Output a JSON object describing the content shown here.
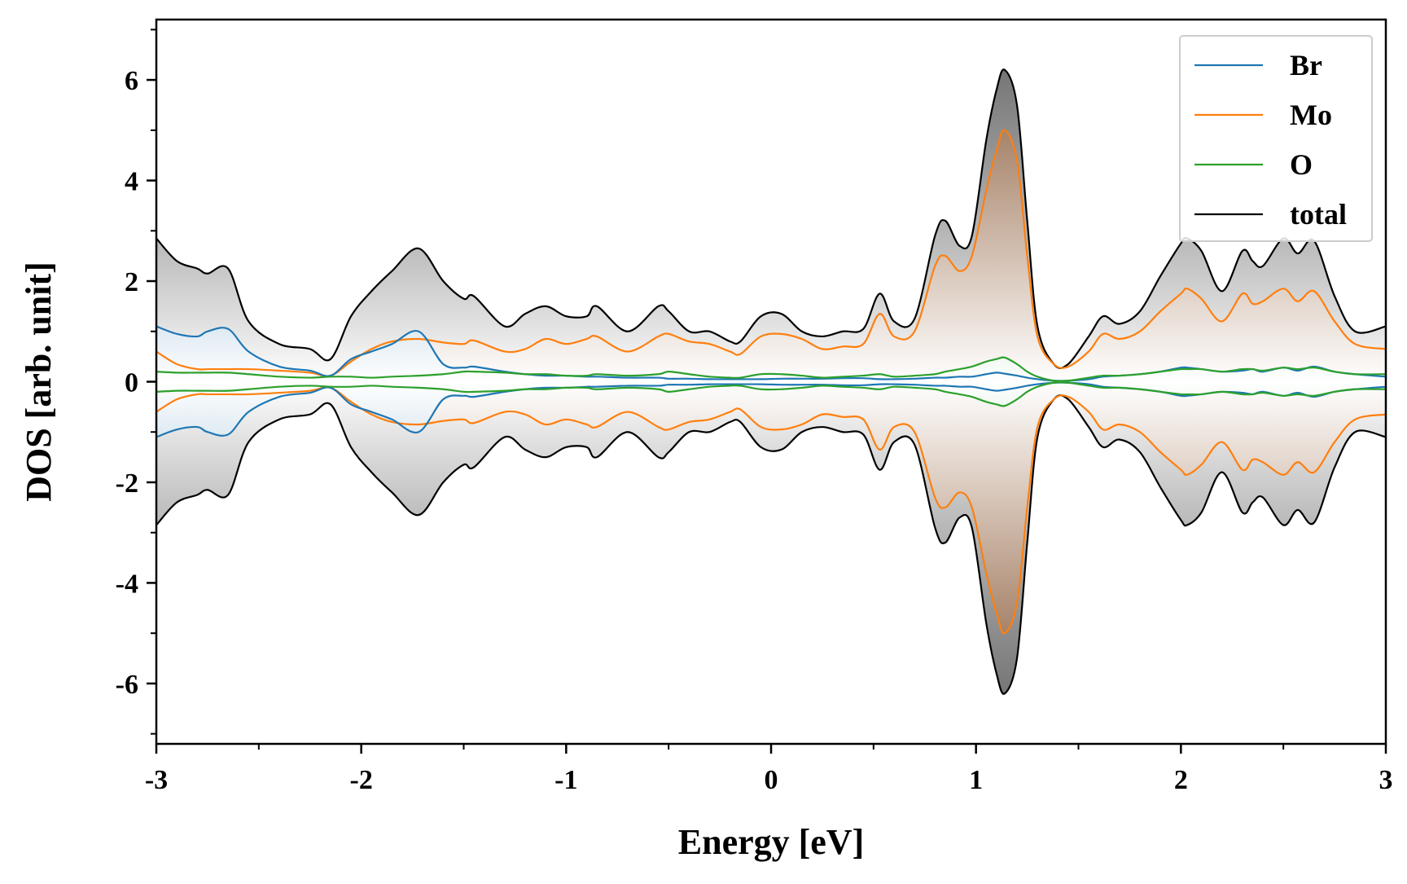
{
  "chart_data": {
    "type": "line",
    "title": "",
    "xlabel": "Energy [eV]",
    "ylabel": "DOS [arb. unit]",
    "xlim": [
      -3,
      3
    ],
    "ylim": [
      -7.2,
      7.2
    ],
    "x_ticks": [
      -3,
      -2,
      -1,
      0,
      1,
      2,
      3
    ],
    "x_tick_labels": [
      "-3",
      "-2",
      "-1",
      "0",
      "1",
      "2",
      "3"
    ],
    "y_ticks": [
      -6,
      -4,
      -2,
      0,
      2,
      4,
      6
    ],
    "y_tick_labels": [
      "-6",
      "-4",
      "-2",
      "0",
      "2",
      "4",
      "6"
    ],
    "legend_position": "top-right",
    "mirrored_about_zero": true,
    "x": [
      -3.0,
      -2.9,
      -2.8,
      -2.75,
      -2.65,
      -2.55,
      -2.4,
      -2.25,
      -2.15,
      -2.05,
      -1.95,
      -1.85,
      -1.72,
      -1.6,
      -1.5,
      -1.45,
      -1.3,
      -1.2,
      -1.1,
      -1.0,
      -0.9,
      -0.85,
      -0.7,
      -0.55,
      -0.5,
      -0.4,
      -0.3,
      -0.2,
      -0.15,
      -0.05,
      0.05,
      0.15,
      0.25,
      0.35,
      0.45,
      0.53,
      0.6,
      0.7,
      0.8,
      0.85,
      0.92,
      0.98,
      1.05,
      1.1,
      1.14,
      1.2,
      1.25,
      1.3,
      1.38,
      1.45,
      1.55,
      1.62,
      1.7,
      1.8,
      1.9,
      2.0,
      2.03,
      2.1,
      2.2,
      2.3,
      2.35,
      2.4,
      2.5,
      2.57,
      2.65,
      2.75,
      2.85,
      3.0
    ],
    "series": [
      {
        "name": "Br",
        "color": "#1f77b4",
        "values": [
          1.1,
          0.95,
          0.9,
          1.0,
          1.05,
          0.6,
          0.3,
          0.22,
          0.12,
          0.45,
          0.6,
          0.75,
          1.0,
          0.35,
          0.28,
          0.3,
          0.2,
          0.15,
          0.12,
          0.12,
          0.1,
          0.1,
          0.08,
          0.08,
          0.06,
          0.06,
          0.05,
          0.05,
          0.05,
          0.05,
          0.06,
          0.06,
          0.06,
          0.07,
          0.07,
          0.05,
          0.05,
          0.06,
          0.08,
          0.08,
          0.1,
          0.1,
          0.15,
          0.18,
          0.16,
          0.12,
          0.08,
          0.05,
          0.02,
          0.02,
          0.05,
          0.1,
          0.12,
          0.15,
          0.2,
          0.28,
          0.28,
          0.25,
          0.2,
          0.22,
          0.25,
          0.2,
          0.28,
          0.22,
          0.3,
          0.2,
          0.15,
          0.1
        ]
      },
      {
        "name": "Mo",
        "color": "#ff7f0e",
        "values": [
          0.6,
          0.35,
          0.25,
          0.25,
          0.25,
          0.25,
          0.22,
          0.18,
          0.12,
          0.4,
          0.65,
          0.8,
          0.85,
          0.78,
          0.75,
          0.82,
          0.6,
          0.65,
          0.85,
          0.75,
          0.85,
          0.9,
          0.6,
          0.9,
          0.95,
          0.8,
          0.75,
          0.6,
          0.55,
          0.9,
          0.95,
          0.85,
          0.65,
          0.7,
          0.75,
          1.35,
          0.9,
          1.0,
          2.3,
          2.5,
          2.2,
          2.5,
          3.8,
          4.6,
          5.0,
          4.4,
          2.5,
          0.9,
          0.35,
          0.3,
          0.6,
          0.95,
          0.85,
          1.0,
          1.4,
          1.75,
          1.85,
          1.65,
          1.2,
          1.75,
          1.55,
          1.6,
          1.85,
          1.6,
          1.8,
          1.2,
          0.75,
          0.65
        ]
      },
      {
        "name": "O",
        "color": "#2ca02c",
        "values": [
          0.2,
          0.18,
          0.18,
          0.18,
          0.18,
          0.15,
          0.1,
          0.08,
          0.1,
          0.1,
          0.08,
          0.1,
          0.12,
          0.15,
          0.2,
          0.2,
          0.18,
          0.15,
          0.15,
          0.12,
          0.12,
          0.15,
          0.12,
          0.15,
          0.2,
          0.15,
          0.1,
          0.08,
          0.08,
          0.15,
          0.15,
          0.12,
          0.08,
          0.1,
          0.12,
          0.15,
          0.1,
          0.12,
          0.15,
          0.2,
          0.25,
          0.3,
          0.4,
          0.45,
          0.48,
          0.35,
          0.2,
          0.1,
          0.02,
          0.02,
          0.08,
          0.12,
          0.12,
          0.15,
          0.2,
          0.25,
          0.25,
          0.25,
          0.2,
          0.25,
          0.25,
          0.22,
          0.28,
          0.25,
          0.28,
          0.2,
          0.15,
          0.15
        ]
      },
      {
        "name": "total",
        "color": "#000000",
        "values": [
          2.85,
          2.4,
          2.25,
          2.15,
          2.25,
          1.2,
          0.75,
          0.65,
          0.45,
          1.3,
          1.8,
          2.2,
          2.65,
          2.0,
          1.65,
          1.7,
          1.1,
          1.35,
          1.5,
          1.3,
          1.3,
          1.5,
          1.0,
          1.5,
          1.4,
          1.0,
          1.0,
          0.8,
          0.8,
          1.3,
          1.35,
          1.0,
          0.9,
          1.0,
          1.05,
          1.75,
          1.2,
          1.25,
          2.9,
          3.2,
          2.7,
          2.9,
          4.8,
          5.8,
          6.2,
          5.5,
          3.2,
          1.1,
          0.35,
          0.35,
          0.9,
          1.3,
          1.15,
          1.4,
          2.1,
          2.75,
          2.85,
          2.6,
          1.8,
          2.6,
          2.4,
          2.3,
          2.85,
          2.55,
          2.8,
          1.7,
          1.0,
          1.1
        ]
      }
    ]
  }
}
